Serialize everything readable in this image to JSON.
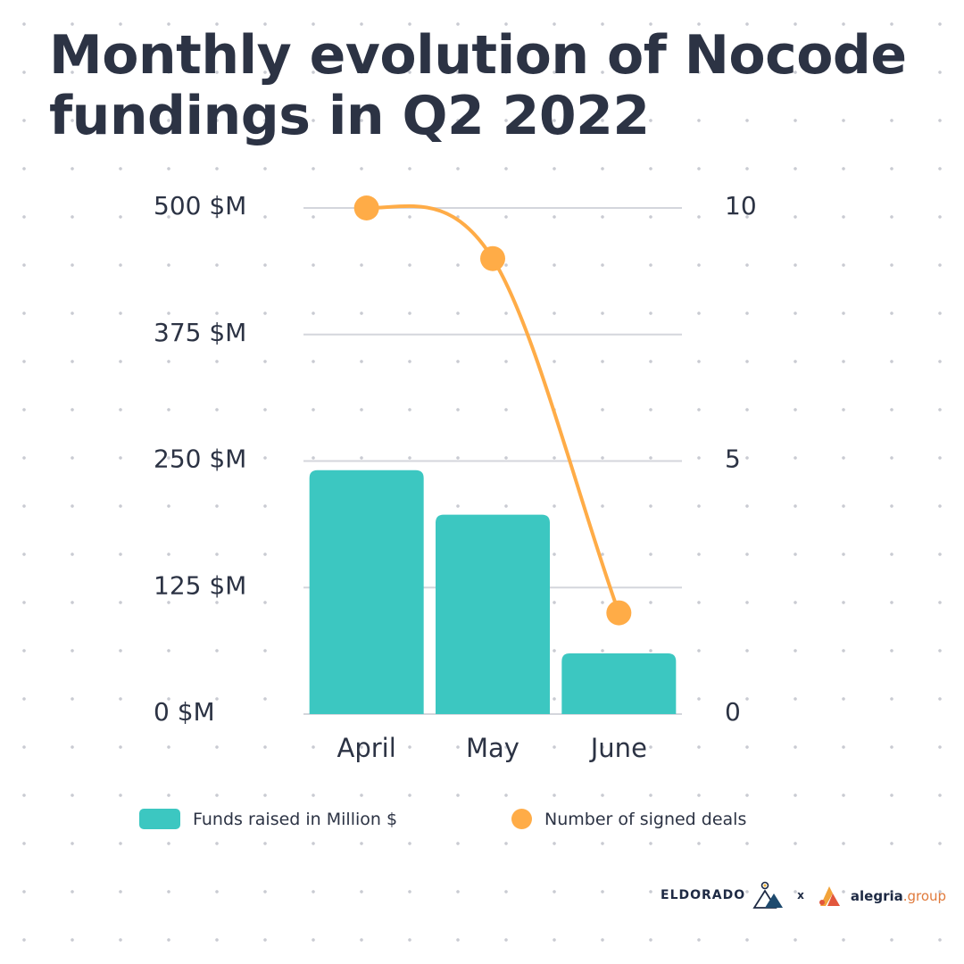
{
  "title": "Monthly evolution of Nocode fundings in Q2 2022",
  "colors": {
    "bars": "#3cc7c1",
    "line": "#ffac47",
    "grid": "#d4d6dc",
    "text": "#2c3344",
    "brand_accent": "#e07a3c"
  },
  "chart_data": {
    "type": "bar",
    "title": "Monthly evolution of Nocode fundings in Q2 2022",
    "categories": [
      "April",
      "May",
      "June"
    ],
    "series": [
      {
        "name": "Funds raised in Million $",
        "type": "bar",
        "axis": "left",
        "values": [
          241,
          197,
          60
        ]
      },
      {
        "name": "Number of signed deals",
        "type": "line",
        "axis": "right",
        "values": [
          10,
          9,
          2
        ]
      }
    ],
    "y_left": {
      "ylim": [
        0,
        500
      ],
      "ticks": [
        0,
        125,
        250,
        375,
        500
      ],
      "tick_labels": [
        "0 $M",
        "125 $M",
        "250 $M",
        "375 $M",
        "500 $M"
      ]
    },
    "y_right": {
      "ylim": [
        0,
        10
      ],
      "ticks": [
        0,
        5,
        10
      ],
      "tick_labels": [
        "0",
        "5",
        "10"
      ]
    },
    "grid": true,
    "legend_position": "bottom"
  },
  "legend": {
    "bars_label": "Funds raised in Million $",
    "line_label": "Number of signed deals"
  },
  "branding": {
    "eldorado": "ELDORADO",
    "separator": "x",
    "alegria": "alegria",
    "group": ".group"
  }
}
